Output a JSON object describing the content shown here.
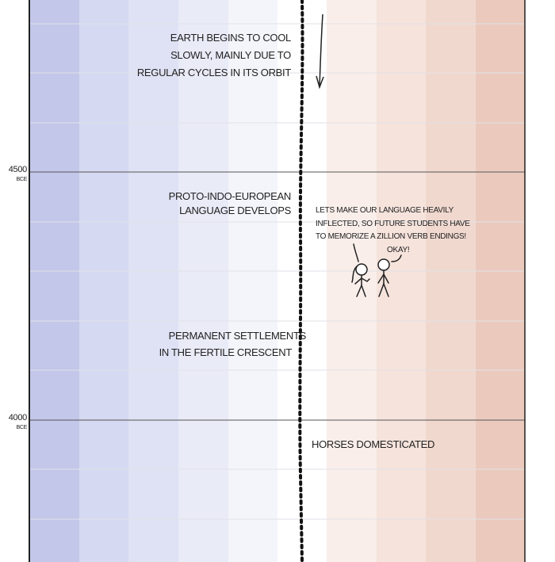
{
  "axis": {
    "ticks": [
      {
        "year": "4500",
        "era": "BCE"
      },
      {
        "year": "4000",
        "era": "BCE"
      }
    ]
  },
  "events": [
    {
      "lines": [
        "EARTH BEGINS TO COOL",
        "SLOWLY, MAINLY DUE TO",
        "REGULAR CYCLES IN ITS ORBIT"
      ]
    },
    {
      "lines": [
        "PROTO-INDO-EUROPEAN",
        "LANGUAGE DEVELOPS"
      ]
    },
    {
      "lines": [
        "PERMANENT SETTLEMENTS",
        "IN THE FERTILE CRESCENT"
      ]
    },
    {
      "lines": [
        "HORSES DOMESTICATED"
      ]
    }
  ],
  "dialogue": [
    {
      "lines": [
        "LETS MAKE OUR LANGUAGE HEAVILY",
        "INFLECTED, SO FUTURE STUDENTS HAVE",
        "TO MEMORIZE A ZILLION VERB ENDINGS!"
      ]
    },
    {
      "lines": [
        "OKAY!"
      ]
    }
  ]
}
